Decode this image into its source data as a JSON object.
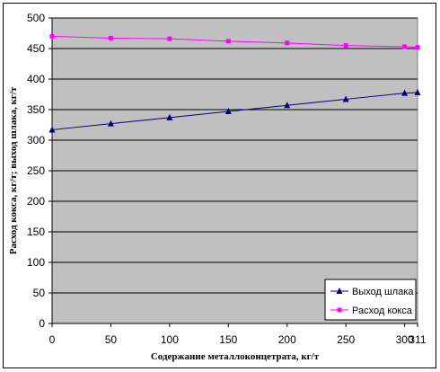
{
  "chart_data": {
    "type": "line",
    "xlabel": "Содержание металлоконцетрата, кг/т",
    "ylabel": "Расход кокса, кг/т; выход шлака, кг/т",
    "x": [
      0,
      50,
      100,
      150,
      200,
      250,
      300,
      311
    ],
    "x_tick_labels": [
      "0",
      "50",
      "100",
      "150",
      "200",
      "250",
      "300",
      "311"
    ],
    "y_ticks": [
      0,
      50,
      100,
      150,
      200,
      250,
      300,
      350,
      400,
      450,
      500
    ],
    "ylim": [
      0,
      500
    ],
    "grid": "horizontal",
    "plot_background": "#c0c0c0",
    "legend_position": "bottom-right",
    "series": [
      {
        "name": "Выход шлака",
        "color": "#000080",
        "marker": "triangle",
        "values": [
          317,
          327,
          337,
          347,
          357,
          367,
          377,
          378
        ]
      },
      {
        "name": "Расход кокса",
        "color": "#ff00ff",
        "marker": "square",
        "values": [
          470,
          467,
          466,
          462,
          459,
          455,
          453,
          452
        ]
      }
    ]
  }
}
